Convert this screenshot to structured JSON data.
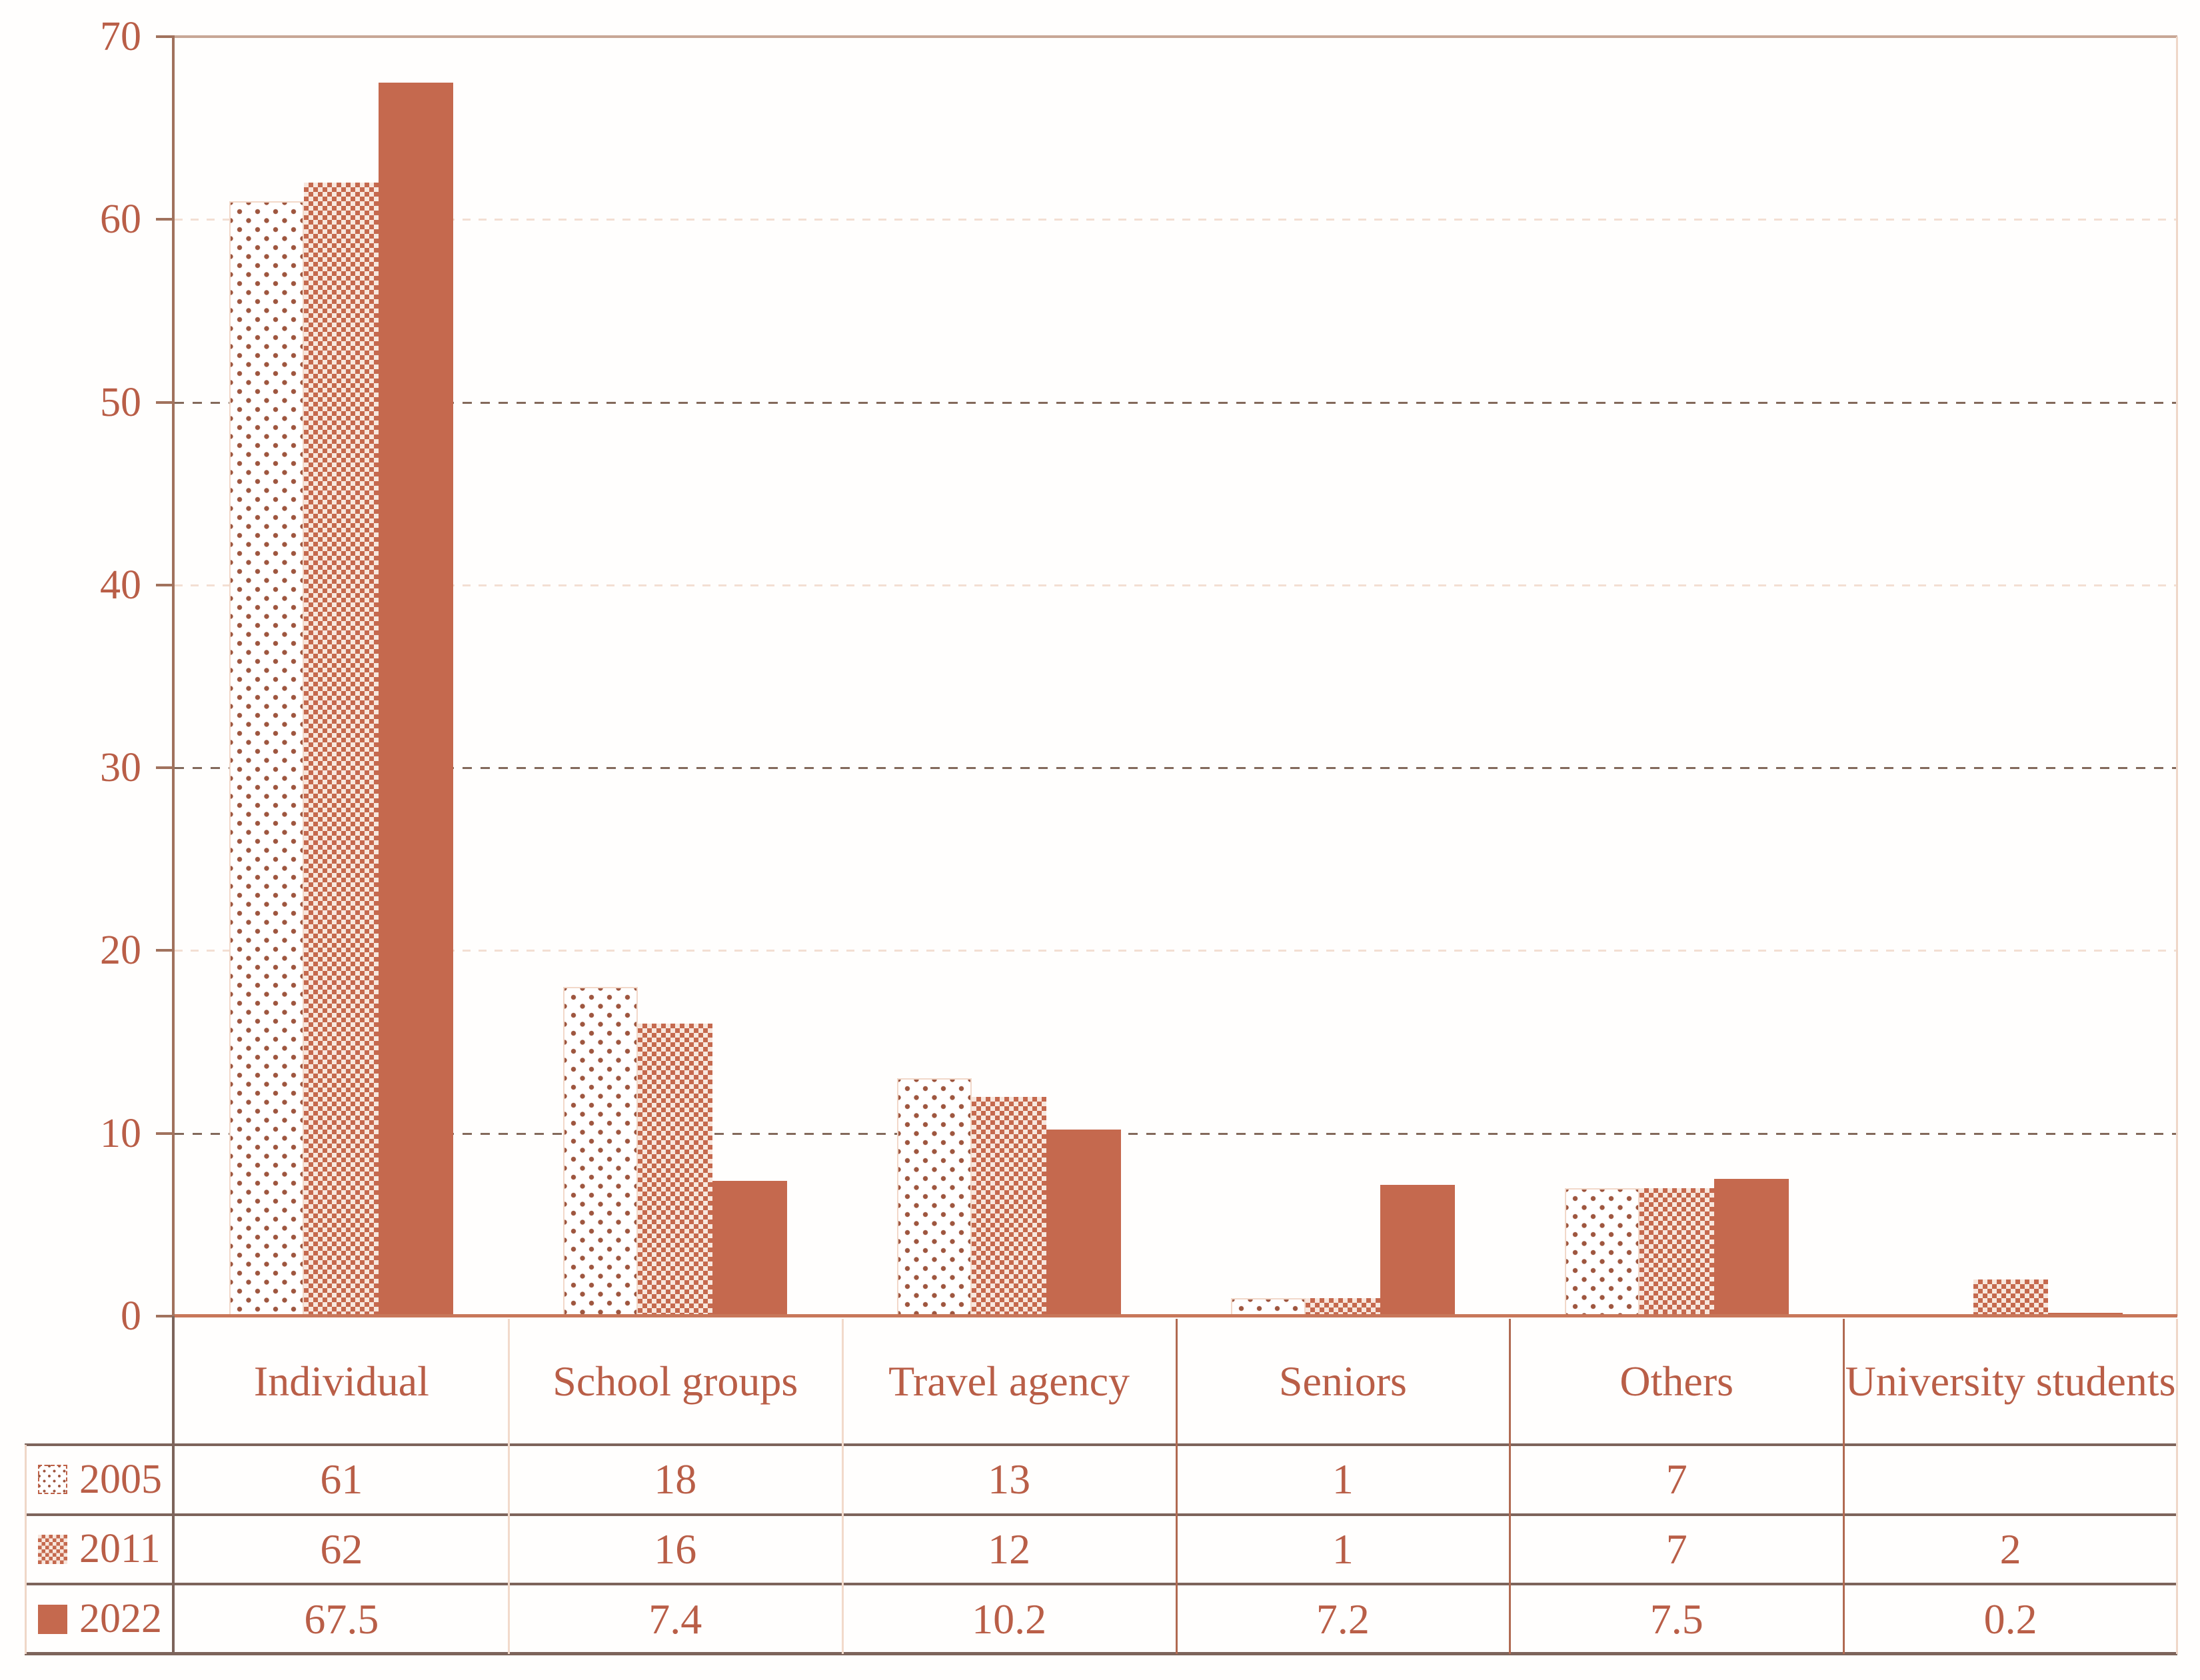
{
  "chart_data": {
    "type": "bar",
    "title": "",
    "categories": [
      "Individual",
      "School groups",
      "Travel agency",
      "Seniors",
      "Others",
      "University students"
    ],
    "series": [
      {
        "name": "2005",
        "pattern": "dotted",
        "values": [
          61,
          18,
          13,
          1,
          7,
          null
        ]
      },
      {
        "name": "2011",
        "pattern": "checker",
        "values": [
          62,
          16,
          12,
          1,
          7,
          2
        ]
      },
      {
        "name": "2022",
        "pattern": "solid",
        "values": [
          67.5,
          7.4,
          10.2,
          7.2,
          7.5,
          0.2
        ]
      }
    ],
    "xlabel": "",
    "ylabel": "",
    "ylim": [
      0,
      70
    ],
    "yticks": [
      0,
      10,
      20,
      30,
      40,
      50,
      60,
      70
    ],
    "grid": "horizontal, dashed dark at 10/30/50, faint at 20/40/60, solid tan top line at 70",
    "legend_position": "table-rows-left"
  },
  "table": {
    "columns": [
      "Individual",
      "School groups",
      "Travel agency",
      "Seniors",
      "Others",
      "University students"
    ],
    "row_headers": [
      "2005",
      "2011",
      "2022"
    ]
  },
  "colors": {
    "bar_solid": "#C5694E",
    "dot_pattern": "#9E563F",
    "checker_light": "#F8E7DE",
    "text": "#B95E47",
    "y_axis_line": "#A1725D",
    "x_axis_line": "#C8775A",
    "top_line": "#C8A796",
    "grid_dark": "#83695B",
    "grid_faint": "#F3DFD3",
    "row_border_dark": "#7D645B",
    "col_border_light": "#F2DACB",
    "col_border_medium": "#B06A52",
    "outer_border_light": "#EFD7C8",
    "background": "#FFFEFD"
  }
}
